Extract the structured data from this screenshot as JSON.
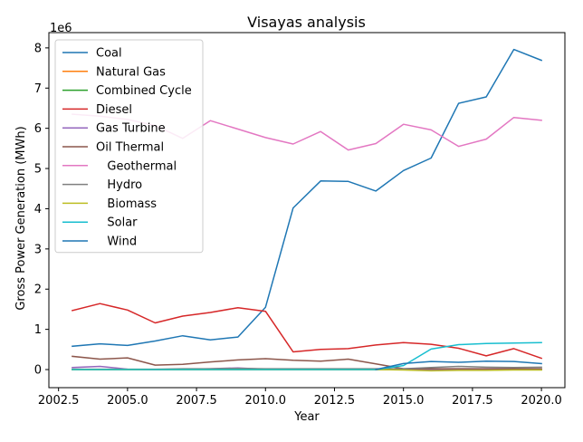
{
  "chart_data": {
    "type": "line",
    "title": "Visayas analysis",
    "xlabel": "Year",
    "ylabel": "Gross Power Generation (MWh)",
    "y_multiplier_label": "1e6",
    "xlim": [
      2002.15,
      2020.85
    ],
    "ylim": [
      -0.45,
      8.38
    ],
    "x_ticks": [
      2002.5,
      2005.0,
      2007.5,
      2010.0,
      2012.5,
      2015.0,
      2017.5,
      2020.0
    ],
    "x_tick_labels": [
      "2002.5",
      "2005.0",
      "2007.5",
      "2010.0",
      "2012.5",
      "2015.0",
      "2017.5",
      "2020.0"
    ],
    "y_ticks": [
      0,
      1,
      2,
      3,
      4,
      5,
      6,
      7,
      8
    ],
    "y_tick_labels": [
      "0",
      "1",
      "2",
      "3",
      "4",
      "5",
      "6",
      "7",
      "8"
    ],
    "grid": false,
    "legend_position": "top-left",
    "x": [
      2003,
      2004,
      2005,
      2006,
      2007,
      2008,
      2009,
      2010,
      2011,
      2012,
      2013,
      2014,
      2015,
      2016,
      2017,
      2018,
      2019,
      2020
    ],
    "series": [
      {
        "name": "Coal",
        "color": "#1f77b4",
        "values": [
          0.58,
          0.64,
          0.6,
          0.71,
          0.84,
          0.74,
          0.81,
          1.55,
          4.02,
          4.69,
          4.68,
          4.44,
          4.95,
          5.26,
          6.62,
          6.78,
          7.96,
          7.69
        ]
      },
      {
        "name": "Natural Gas",
        "color": "#ff7f0e",
        "values": [
          0,
          0,
          0,
          0,
          0,
          0,
          0,
          0,
          0,
          0,
          0,
          0,
          0,
          0,
          0,
          0,
          0,
          0
        ]
      },
      {
        "name": "Combined Cycle",
        "color": "#2ca02c",
        "values": [
          0,
          0,
          0,
          0,
          0,
          0,
          0,
          0,
          0,
          0,
          0,
          0,
          0,
          0,
          0,
          0,
          0,
          0
        ]
      },
      {
        "name": "Diesel",
        "color": "#d62728",
        "values": [
          1.47,
          1.64,
          1.48,
          1.16,
          1.33,
          1.42,
          1.54,
          1.45,
          0.44,
          0.5,
          0.52,
          0.61,
          0.67,
          0.63,
          0.53,
          0.34,
          0.52,
          0.28
        ]
      },
      {
        "name": "Gas Turbine",
        "color": "#9467bd",
        "values": [
          0.05,
          0.08,
          0.01,
          0.0,
          0.01,
          0.02,
          0.04,
          0.01,
          0.01,
          0.01,
          0.01,
          0.01,
          0.01,
          0.0,
          0.0,
          0.0,
          0.0,
          0.0
        ]
      },
      {
        "name": "Oil Thermal",
        "color": "#8c564b",
        "values": [
          0.33,
          0.26,
          0.29,
          0.11,
          0.13,
          0.19,
          0.24,
          0.27,
          0.23,
          0.21,
          0.26,
          0.14,
          0.02,
          0.02,
          0.02,
          0.02,
          0.02,
          0.02
        ]
      },
      {
        "name": "   Geothermal",
        "color": "#e377c2",
        "values": [
          6.35,
          6.3,
          6.22,
          6.07,
          5.75,
          6.19,
          5.98,
          5.77,
          5.61,
          5.92,
          5.46,
          5.62,
          6.1,
          5.96,
          5.55,
          5.73,
          6.27,
          6.2
        ]
      },
      {
        "name": "   Hydro",
        "color": "#7f7f7f",
        "values": [
          0.01,
          0.01,
          0.01,
          0.01,
          0.02,
          0.02,
          0.03,
          0.02,
          0.02,
          0.02,
          0.02,
          0.02,
          0.02,
          0.05,
          0.08,
          0.06,
          0.05,
          0.06
        ]
      },
      {
        "name": "   Biomass",
        "color": "#bcbd22",
        "values": [
          0,
          0,
          0,
          0,
          0,
          0,
          0,
          0,
          0,
          0,
          0,
          0,
          -0.01,
          -0.03,
          -0.02,
          -0.02,
          -0.01,
          -0.01
        ]
      },
      {
        "name": "   Solar",
        "color": "#17becf",
        "values": [
          0,
          0,
          0,
          0,
          0,
          0,
          0,
          0,
          0,
          0,
          0,
          0,
          0.1,
          0.51,
          0.62,
          0.65,
          0.66,
          0.67
        ]
      },
      {
        "name": "   Wind",
        "color": "#1f77b4",
        "values": [
          null,
          null,
          null,
          null,
          null,
          null,
          null,
          null,
          null,
          null,
          null,
          0.0,
          0.15,
          0.2,
          0.18,
          0.21,
          0.2,
          0.15
        ]
      }
    ]
  }
}
